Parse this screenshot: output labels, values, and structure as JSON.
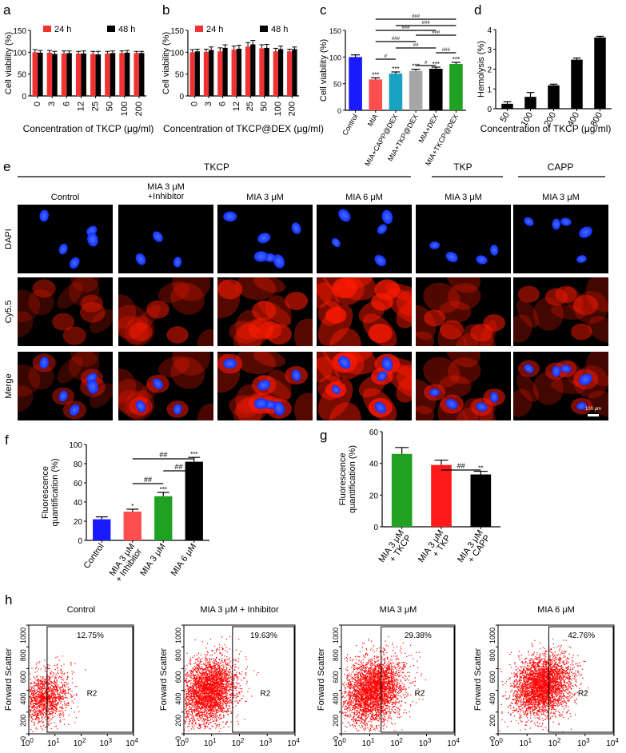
{
  "panel_labels": {
    "a": "a",
    "b": "b",
    "c": "c",
    "d": "d",
    "e": "e",
    "f": "f",
    "g": "g",
    "h": "h"
  },
  "chart_data": [
    {
      "panel": "a",
      "type": "bar",
      "categories": [
        "0",
        "3",
        "6",
        "12",
        "25",
        "50",
        "100",
        "200"
      ],
      "series": [
        {
          "name": "24 h",
          "color": "#f03232",
          "values": [
            100,
            99,
            97,
            97,
            96,
            97,
            98,
            98
          ],
          "errors": [
            6,
            5,
            6,
            5,
            6,
            5,
            5,
            4
          ]
        },
        {
          "name": "48 h",
          "color": "#000000",
          "values": [
            99,
            96,
            98,
            97,
            95,
            98,
            99,
            98
          ],
          "errors": [
            5,
            6,
            5,
            6,
            7,
            5,
            5,
            4
          ]
        }
      ],
      "xlabel": "Concentration of TKCP (μg/ml)",
      "ylabel": "Cell viability (%)",
      "ylim": [
        0,
        150
      ],
      "yticks": [
        "0",
        "50",
        "100",
        "150"
      ],
      "legend_position": "top"
    },
    {
      "panel": "b",
      "type": "bar",
      "categories": [
        "0",
        "3",
        "6",
        "12",
        "25",
        "50",
        "100",
        "200"
      ],
      "series": [
        {
          "name": "24 h",
          "color": "#f03232",
          "values": [
            100,
            101,
            102,
            106,
            113,
            109,
            102,
            102
          ],
          "errors": [
            6,
            6,
            8,
            8,
            9,
            8,
            7,
            5
          ]
        },
        {
          "name": "48 h",
          "color": "#000000",
          "values": [
            102,
            105,
            110,
            108,
            118,
            110,
            107,
            107
          ],
          "errors": [
            5,
            7,
            7,
            8,
            9,
            8,
            7,
            5
          ]
        }
      ],
      "xlabel": "Concentration of TKCP@DEX (μg/ml)",
      "ylabel": "Cell viability (%)",
      "ylim": [
        0,
        150
      ],
      "yticks": [
        "0",
        "50",
        "100",
        "150"
      ],
      "legend_position": "top"
    },
    {
      "panel": "c",
      "type": "bar",
      "categories": [
        "Control",
        "MIA",
        "MIA+CAPP@DEX",
        "MIA+TKP@DEX",
        "MIA+DEX",
        "MIA+TKCP@DEX"
      ],
      "values": [
        100,
        58,
        69,
        74,
        78,
        87
      ],
      "errors": [
        4,
        3,
        3,
        3,
        3,
        3
      ],
      "colors": [
        "#1a1aff",
        "#ff4f4f",
        "#1aa3c0",
        "#a6a6a6",
        "#000000",
        "#21a121"
      ],
      "stars": [
        "",
        "***",
        "***",
        "***",
        "***",
        "***"
      ],
      "ylabel": "Cell viability (%)",
      "ylim": [
        0,
        150
      ],
      "yticks": [
        "0",
        "50",
        "100",
        "150"
      ],
      "brackets": [
        {
          "from": 1,
          "to": 5,
          "label": "###"
        },
        {
          "from": 2,
          "to": 5,
          "label": "###"
        },
        {
          "from": 1,
          "to": 4,
          "label": "###"
        },
        {
          "from": 3,
          "to": 5,
          "label": "###"
        },
        {
          "from": 1,
          "to": 3,
          "label": "###"
        },
        {
          "from": 2,
          "to": 4,
          "label": "##"
        },
        {
          "from": 4,
          "to": 5,
          "label": "###"
        },
        {
          "from": 1,
          "to": 2,
          "label": "#"
        },
        {
          "from": 3,
          "to": 4,
          "label": "#"
        }
      ]
    },
    {
      "panel": "d",
      "type": "bar",
      "categories": [
        "50",
        "100",
        "200",
        "400",
        "800"
      ],
      "values": [
        0.25,
        0.6,
        1.18,
        2.48,
        3.6
      ],
      "errors": [
        0.1,
        0.22,
        0.06,
        0.08,
        0.06
      ],
      "color": "#000000",
      "xlabel": "Concentration of TKCP (μg/ml)",
      "ylabel": "Hemolysis (%)",
      "ylim": [
        0,
        4
      ],
      "yticks": [
        "0",
        "1",
        "2",
        "3",
        "4"
      ]
    },
    {
      "panel": "f",
      "type": "bar",
      "categories": [
        "Control",
        "MIA 3 μM\n+ Inhibitor",
        "MIA 3 μM",
        "MIA 6 μM"
      ],
      "values": [
        22,
        30,
        46,
        82
      ],
      "errors": [
        2.5,
        2.5,
        4,
        4.5
      ],
      "colors": [
        "#1a1aff",
        "#ff4f4f",
        "#21a121",
        "#000000"
      ],
      "stars": [
        "",
        "*",
        "***",
        "***"
      ],
      "ylabel": "Fluorescence\nquantification (%)",
      "ylim": [
        0,
        100
      ],
      "yticks": [
        "0",
        "20",
        "40",
        "60",
        "80",
        "100"
      ],
      "brackets": [
        {
          "from": 1,
          "to": 3,
          "label": "##"
        },
        {
          "from": 2,
          "to": 3,
          "label": "##"
        },
        {
          "from": 1,
          "to": 2,
          "label": "##"
        }
      ]
    },
    {
      "panel": "g",
      "type": "bar",
      "categories": [
        "MIA 3 μM\n+ TKCP",
        "MIA 3 μM\n+ TKP",
        "MIA 3 μM\n+ CAPP"
      ],
      "values": [
        46,
        39,
        33
      ],
      "errors": [
        4,
        3,
        2
      ],
      "colors": [
        "#21a121",
        "#ff1a1a",
        "#000000"
      ],
      "stars": [
        "",
        "",
        "**"
      ],
      "ylabel": "Fluorescence\nquantification (%)",
      "ylim": [
        0,
        60
      ],
      "yticks": [
        "0",
        "20",
        "40",
        "60"
      ],
      "brackets": [
        {
          "from": 1,
          "to": 2,
          "label": "##"
        }
      ]
    },
    {
      "panel": "h",
      "type": "scatter",
      "subplots": [
        {
          "title": "Control",
          "gate_percent": "12.75%",
          "gate_label": "R2",
          "gate_x": 0.7,
          "cloud_center": [
            0.6,
            330
          ],
          "cloud_spread": [
            0.85,
            120
          ],
          "count": 1400
        },
        {
          "title": "MIA 3 μM + Inhibitor",
          "gate_percent": "19.63%",
          "gate_label": "R2",
          "gate_x": 1.75,
          "cloud_center": [
            0.9,
            400
          ],
          "cloud_spread": [
            0.9,
            150
          ],
          "count": 3200
        },
        {
          "title": "MIA 3 μM",
          "gate_percent": "29.38%",
          "gate_label": "R2",
          "gate_x": 1.4,
          "cloud_center": [
            1.1,
            400
          ],
          "cloud_spread": [
            0.95,
            150
          ],
          "count": 3400
        },
        {
          "title": "MIA 6 μM",
          "gate_percent": "42.76%",
          "gate_label": "R2",
          "gate_x": 1.75,
          "cloud_center": [
            1.5,
            450
          ],
          "cloud_spread": [
            0.9,
            140
          ],
          "count": 3400
        }
      ],
      "ylabel": "Forward Scatter",
      "ylim": [
        0,
        1000
      ],
      "yticks": [
        "0",
        "200",
        "400",
        "600",
        "800",
        "1000"
      ],
      "xticks": [
        "10",
        "10",
        "10",
        "10",
        "10"
      ],
      "xtick_exponents": [
        "0",
        "1",
        "2",
        "3",
        "4"
      ],
      "point_color": "#ff0000"
    }
  ],
  "microscopy": {
    "group_headers": [
      "TKCP",
      "TKP",
      "CAPP"
    ],
    "column_titles": [
      "Control",
      "MIA 3 μM\n+Inhibitor",
      "MIA 3 μM",
      "MIA 6 μM",
      "MIA 3 μM",
      "MIA 3 μM"
    ],
    "row_labels": [
      "DAPI",
      "Cy5.5",
      "Merge"
    ],
    "scale_bar": "100 μm",
    "red_intensity": [
      0.25,
      0.45,
      0.6,
      1.0,
      0.55,
      0.4
    ],
    "nuclei_count": [
      5,
      3,
      6,
      5,
      4,
      5
    ],
    "colors": {
      "dapi": "#1030ff",
      "cy55": "#ff1a00",
      "background": "#000000"
    }
  }
}
